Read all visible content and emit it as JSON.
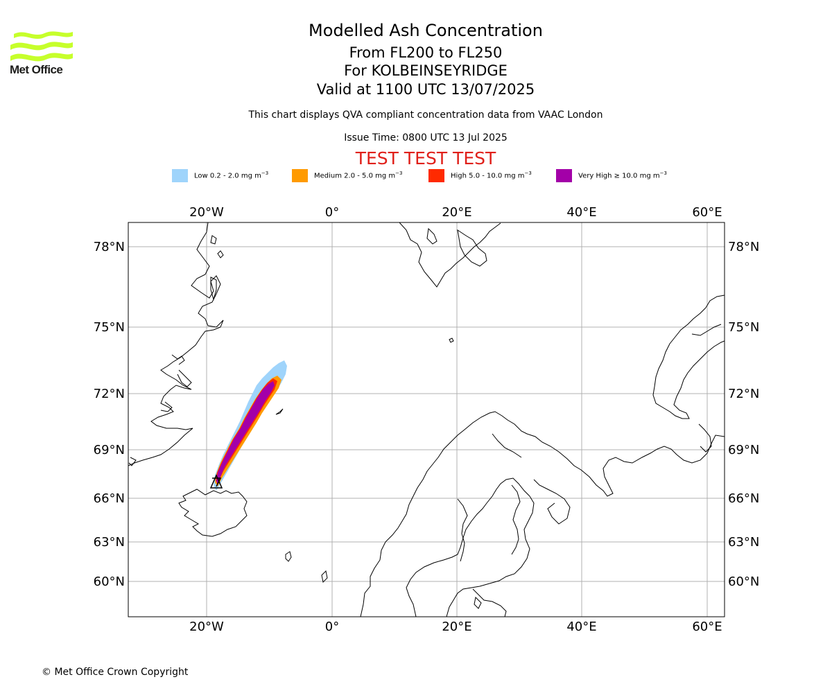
{
  "logo": {
    "text": "Met Office",
    "color": "#c6ff2b"
  },
  "header": {
    "title": "Modelled Ash Concentration",
    "level": "From FL200 to FL250",
    "volcano": "For KOLBEINSEYRIDGE",
    "valid": "Valid at 1100 UTC 13/07/2025",
    "compliance": "This chart displays QVA compliant concentration data from VAAC London",
    "issue": "Issue Time: 0800 UTC 13 Jul 2025",
    "test_banner": "TEST TEST TEST"
  },
  "legend": [
    {
      "label": "Low 0.2 - 2.0 mg m",
      "color": "#9fd4fb"
    },
    {
      "label": "Medium 2.0 - 5.0 mg m",
      "color": "#ff9a00"
    },
    {
      "label": "High 5.0 - 10.0 mg m",
      "color": "#ff2a00"
    },
    {
      "label": "Very High ≥ 10.0 mg m",
      "color": "#a300a8"
    }
  ],
  "map": {
    "lon_ticks": [
      "20°W",
      "0°",
      "20°E",
      "40°E",
      "60°E"
    ],
    "lat_ticks": [
      "78°N",
      "75°N",
      "72°N",
      "69°N",
      "66°N",
      "63°N",
      "60°N"
    ],
    "grid_color": "#b0b0b0",
    "source_marker": "volcano-triangle"
  },
  "footer": {
    "copyright": "© Met Office Crown Copyright"
  }
}
